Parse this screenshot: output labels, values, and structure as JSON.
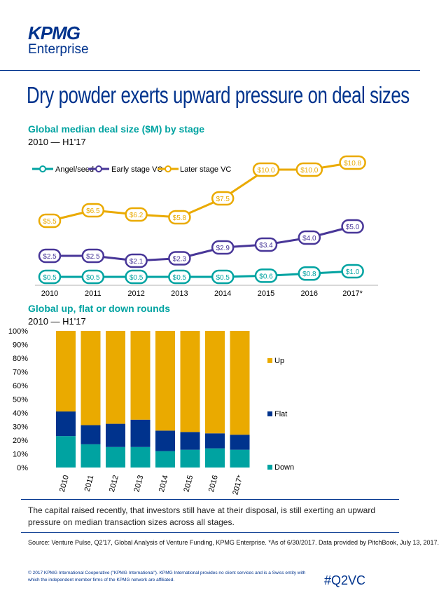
{
  "brand": {
    "logo_text": "KPMG",
    "sub_text": "Enterprise"
  },
  "headline": "Dry powder exerts upward pressure on deal sizes",
  "colors": {
    "navy": "#00338d",
    "purple": "#483698",
    "teal": "#00a3a1",
    "gold": "#eaaa00"
  },
  "chart_data": [
    {
      "type": "line",
      "title": "Global median deal size ($M) by stage",
      "subtitle": "2010 — H1'17",
      "x": [
        "2010",
        "2011",
        "2012",
        "2013",
        "2014",
        "2015",
        "2016",
        "2017*"
      ],
      "series": [
        {
          "name": "Angel/seed",
          "color": "#00a3a1",
          "values": [
            0.5,
            0.5,
            0.5,
            0.5,
            0.5,
            0.6,
            0.8,
            1.0
          ],
          "labels": [
            "$0.5",
            "$0.5",
            "$0.5",
            "$0.5",
            "$0.5",
            "$0.6",
            "$0.8",
            "$1.0"
          ]
        },
        {
          "name": "Early stage VC",
          "color": "#483698",
          "values": [
            2.5,
            2.5,
            2.1,
            2.3,
            2.9,
            3.4,
            4.0,
            5.0
          ],
          "labels": [
            "$2.5",
            "$2.5",
            "$2.1",
            "$2.3",
            "$2.9",
            "$3.4",
            "$4.0",
            "$5.0"
          ]
        },
        {
          "name": "Later stage VC",
          "color": "#eaaa00",
          "values": [
            5.5,
            6.5,
            6.2,
            5.8,
            7.5,
            10.0,
            10.0,
            10.8
          ],
          "labels": [
            "$5.5",
            "$6.5",
            "$6.2",
            "$5.8",
            "$7.5",
            "$10.0",
            "$10.0",
            "$10.8"
          ]
        }
      ],
      "legend": "top-left"
    },
    {
      "type": "bar",
      "stacked": true,
      "title": "Global up, flat or down rounds",
      "subtitle": "2010 — H1'17",
      "categories": [
        "2010",
        "2011",
        "2012",
        "2013",
        "2014",
        "2015",
        "2016",
        "2017*"
      ],
      "series": [
        {
          "name": "Down",
          "color": "#00a3a1",
          "values": [
            23,
            17,
            15,
            15,
            12,
            13,
            14,
            13
          ]
        },
        {
          "name": "Flat",
          "color": "#00338d",
          "values": [
            18,
            14,
            17,
            20,
            15,
            13,
            11,
            11
          ]
        },
        {
          "name": "Up",
          "color": "#eaaa00",
          "values": [
            59,
            69,
            68,
            65,
            73,
            74,
            75,
            76
          ]
        }
      ],
      "yticks": [
        "0%",
        "10%",
        "20%",
        "30%",
        "40%",
        "50%",
        "60%",
        "70%",
        "80%",
        "90%",
        "100%"
      ],
      "ylim": [
        0,
        100
      ],
      "legend": "right"
    }
  ],
  "caption": "The capital raised recently, that investors still have at their disposal, is still exerting an upward pressure on median transaction sizes across all stages.",
  "source": "Source: Venture Pulse, Q2'17, Global Analysis of Venture Funding, KPMG Enterprise. *As of 6/30/2017. Data provided by PitchBook, July 13, 2017.",
  "footer": "© 2017 KPMG International Cooperative (\"KPMG International\"). KPMG International provides no client services and is a Swiss entity with which the independent member firms of the KPMG network are affiliated.",
  "hashtag": "#Q2VC"
}
